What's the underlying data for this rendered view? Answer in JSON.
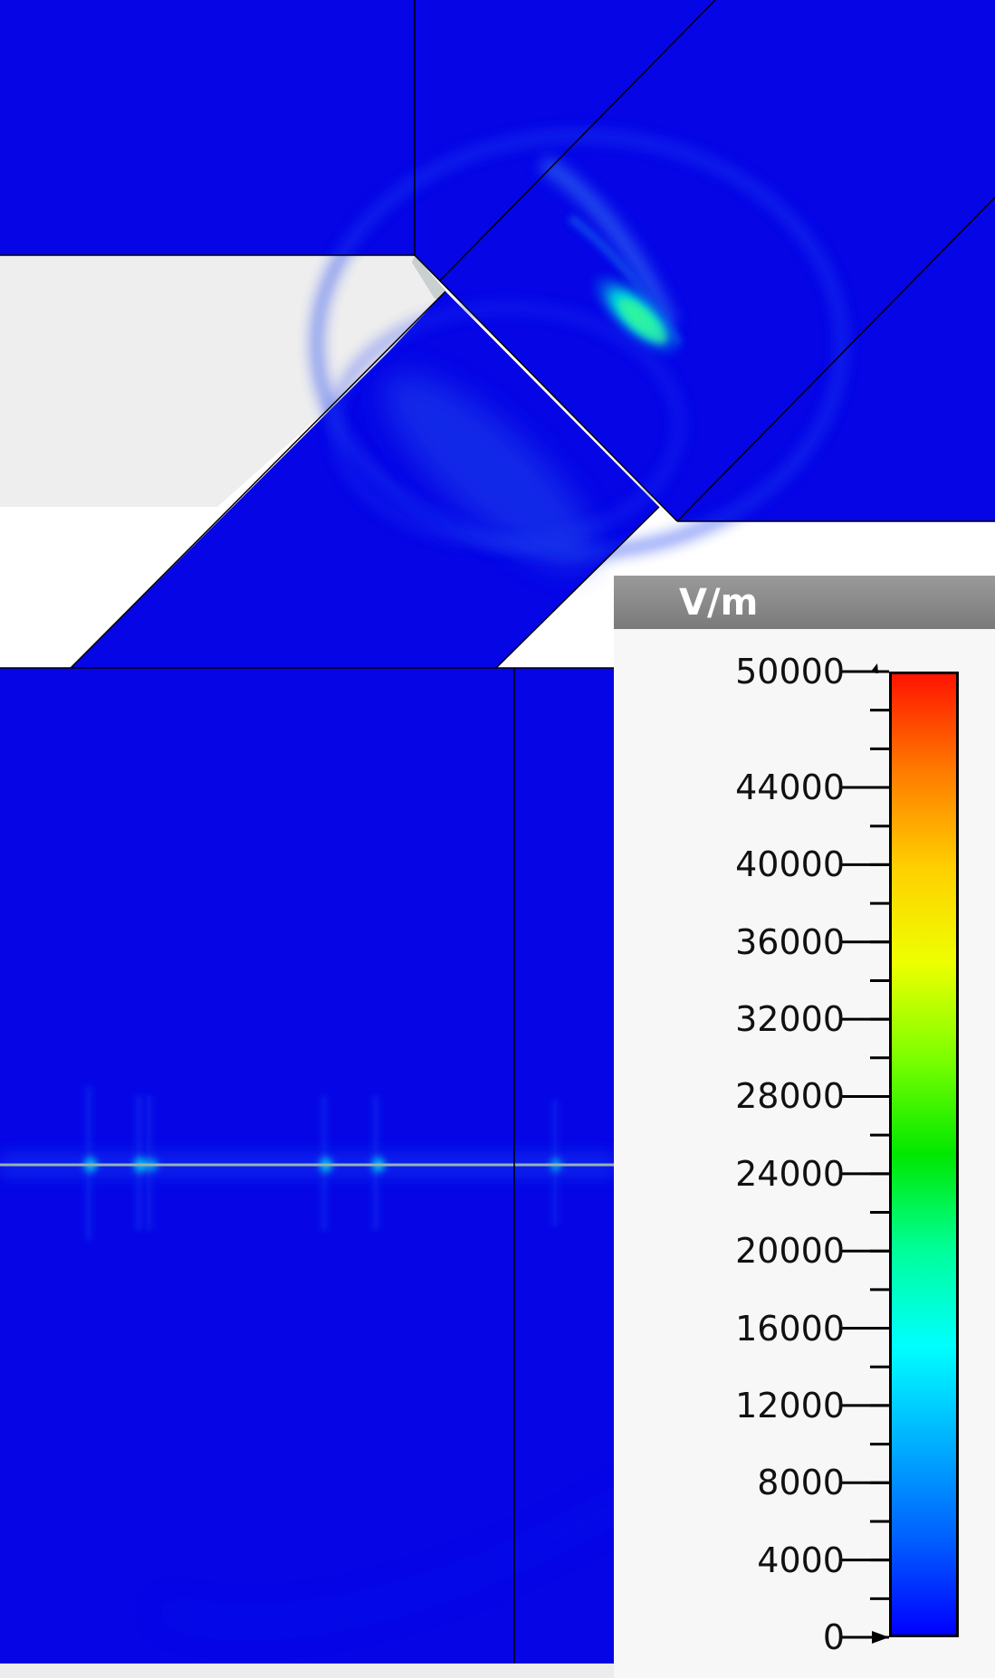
{
  "legend": {
    "unit": "V/m",
    "min": 0,
    "max": 50000,
    "tick_labels": [
      "50000",
      "44000",
      "40000",
      "36000",
      "32000",
      "28000",
      "24000",
      "20000",
      "16000",
      "12000",
      "8000",
      "4000",
      "0"
    ],
    "tick_values": [
      50000,
      44000,
      40000,
      36000,
      32000,
      28000,
      24000,
      20000,
      16000,
      12000,
      8000,
      4000,
      0
    ],
    "colormap": [
      "#0000ff",
      "#0060ff",
      "#00b0ff",
      "#00ffff",
      "#00ff9a",
      "#00e800",
      "#7cff00",
      "#eeff00",
      "#ffcf00",
      "#ff7a00",
      "#ff1400"
    ]
  },
  "colors": {
    "field_background": "#0505e6",
    "domain_outline": "#000000",
    "empty_region": "#eeeeee"
  }
}
